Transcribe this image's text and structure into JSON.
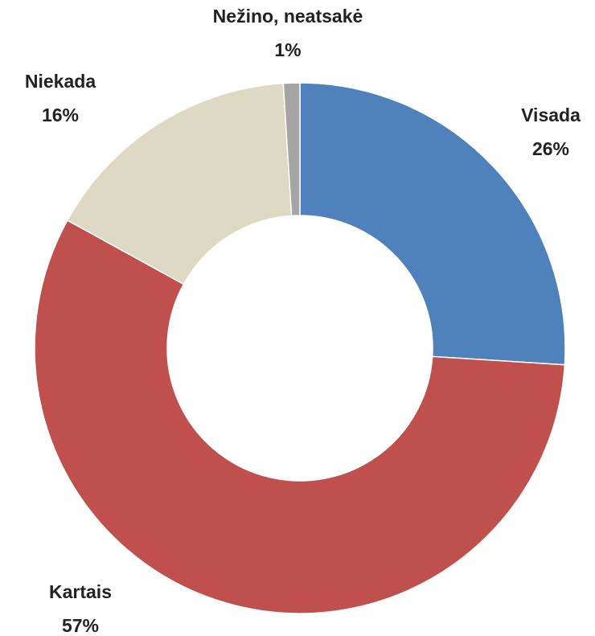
{
  "chart_data": {
    "type": "donut",
    "categories": [
      "Visada",
      "Kartais",
      "Niekada",
      "Nežino, neatsakė"
    ],
    "values": [
      26,
      57,
      16,
      1
    ],
    "value_labels": [
      "26%",
      "57%",
      "16%",
      "1%"
    ],
    "colors": [
      "#4f81bd",
      "#c0504d",
      "#ddd9c3",
      "#a5a5a5"
    ]
  }
}
